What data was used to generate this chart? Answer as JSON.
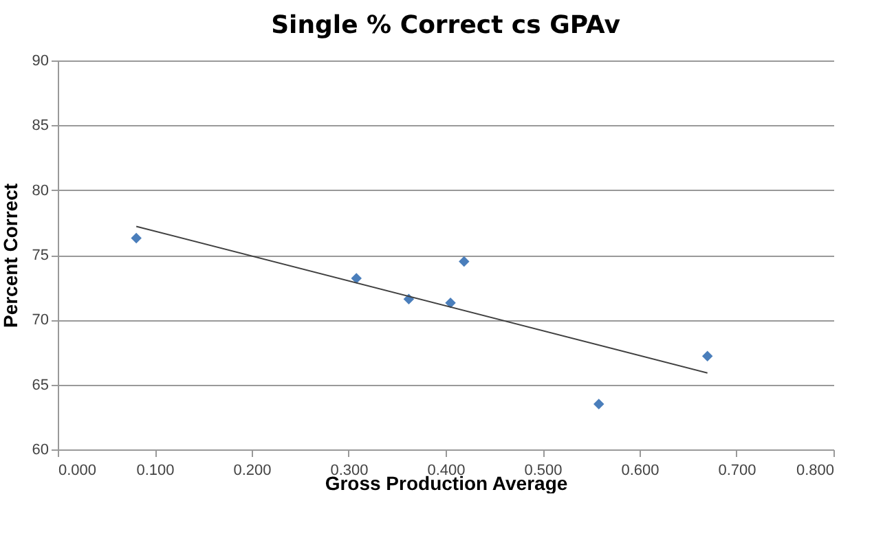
{
  "chart_data": {
    "type": "scatter",
    "title": "Single % Correct cs GPAv",
    "xlabel": "Gross Production Average",
    "ylabel": "Percent Correct",
    "series": [
      {
        "marker": "diamond",
        "color": "#4a7ebb",
        "x": [
          0.081,
          0.308,
          0.362,
          0.405,
          0.419,
          0.558,
          0.67
        ],
        "values": [
          76.3,
          73.2,
          71.6,
          71.3,
          74.5,
          63.5,
          67.2
        ]
      },
      {
        "type": "line",
        "marker": "none",
        "color": "#404040",
        "x": [
          0.081,
          0.67
        ],
        "values": [
          77.2,
          65.9
        ]
      }
    ],
    "xlim": [
      0,
      0.8
    ],
    "xticks": [
      {
        "value": 0,
        "label": "0.000"
      },
      {
        "value": 0.1,
        "label": "0.100"
      },
      {
        "value": 0.2,
        "label": "0.200"
      },
      {
        "value": 0.3,
        "label": "0.300"
      },
      {
        "value": 0.4,
        "label": "0.400"
      },
      {
        "value": 0.5,
        "label": "0.500"
      },
      {
        "value": 0.6,
        "label": "0.600"
      },
      {
        "value": 0.7,
        "label": "0.700"
      },
      {
        "value": 0.8,
        "label": "0.800"
      }
    ],
    "ylim": [
      60,
      90
    ],
    "yticks": [
      60,
      65,
      70,
      75,
      80,
      85,
      90
    ],
    "grid": "y"
  }
}
